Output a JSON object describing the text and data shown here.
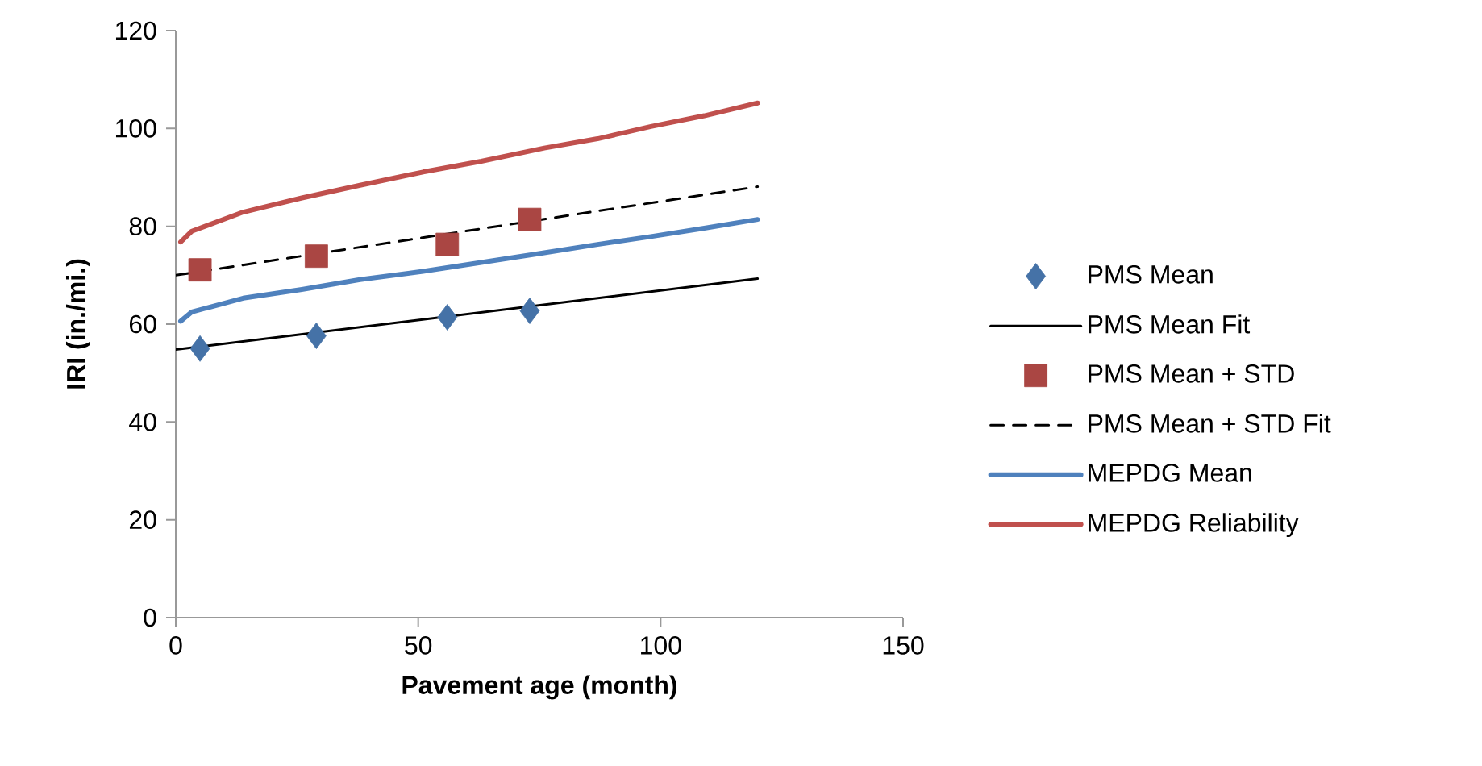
{
  "chart_data": {
    "type": "line",
    "xlabel": "Pavement age (month)",
    "ylabel": "IRI (in./mi.)",
    "xlim": [
      0,
      150
    ],
    "xticks": [
      0,
      50,
      100,
      150
    ],
    "ylim": [
      0,
      120
    ],
    "yticks": [
      0,
      20,
      40,
      60,
      80,
      100,
      120
    ],
    "grid": false,
    "legend": "right",
    "series": [
      {
        "name": "PMS Mean",
        "type": "scatter",
        "marker": "diamond",
        "color": "#4572a7",
        "x": [
          5,
          29,
          56,
          73
        ],
        "values": [
          55.0,
          57.6,
          61.4,
          62.7
        ]
      },
      {
        "name": "PMS Mean Fit",
        "line_style": "solid",
        "color": "#000000",
        "x": [
          0,
          120
        ],
        "values": [
          54.8,
          69.3
        ]
      },
      {
        "name": "PMS Mean + STD",
        "type": "scatter",
        "marker": "square",
        "color": "#aa4643",
        "x": [
          5,
          29,
          56,
          73
        ],
        "values": [
          71.1,
          73.9,
          76.3,
          81.4
        ]
      },
      {
        "name": "PMS Mean + STD Fit",
        "line_style": "dashed",
        "color": "#000000",
        "x": [
          0,
          120
        ],
        "values": [
          70.0,
          88.1
        ]
      },
      {
        "name": "MEPDG Mean",
        "line_style": "solid",
        "color": "#4f81bd",
        "x": [
          1,
          3.3,
          13.9,
          26,
          38,
          51,
          63,
          76,
          87,
          98,
          109,
          120
        ],
        "values": [
          60.6,
          62.5,
          65.3,
          67.1,
          69.1,
          70.8,
          72.6,
          74.6,
          76.3,
          77.9,
          79.6,
          81.4
        ]
      },
      {
        "name": "MEPDG Reliability",
        "line_style": "solid",
        "color": "#c0504d",
        "x": [
          1,
          3.3,
          13.9,
          26,
          38,
          51,
          63,
          76,
          87,
          98,
          109,
          120
        ],
        "values": [
          76.8,
          79.0,
          82.9,
          85.8,
          88.4,
          91.1,
          93.3,
          96.0,
          97.9,
          100.4,
          102.6,
          105.2
        ]
      }
    ]
  }
}
